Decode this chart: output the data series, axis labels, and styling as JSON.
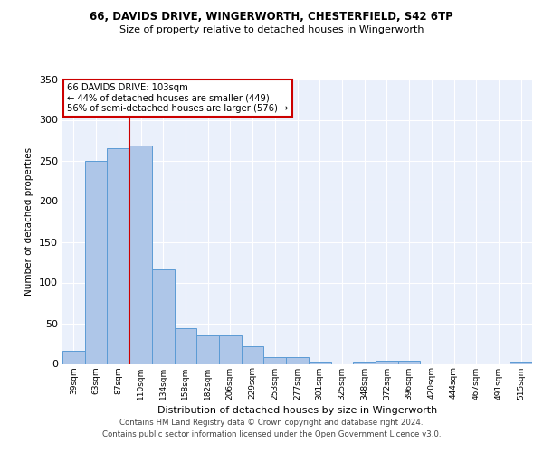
{
  "title1": "66, DAVIDS DRIVE, WINGERWORTH, CHESTERFIELD, S42 6TP",
  "title2": "Size of property relative to detached houses in Wingerworth",
  "xlabel": "Distribution of detached houses by size in Wingerworth",
  "ylabel": "Number of detached properties",
  "bin_labels": [
    "39sqm",
    "63sqm",
    "87sqm",
    "110sqm",
    "134sqm",
    "158sqm",
    "182sqm",
    "206sqm",
    "229sqm",
    "253sqm",
    "277sqm",
    "301sqm",
    "325sqm",
    "348sqm",
    "372sqm",
    "396sqm",
    "420sqm",
    "444sqm",
    "467sqm",
    "491sqm",
    "515sqm"
  ],
  "bar_values": [
    16,
    249,
    265,
    268,
    116,
    44,
    35,
    35,
    22,
    8,
    8,
    3,
    0,
    3,
    4,
    4,
    0,
    0,
    0,
    0,
    3
  ],
  "bar_color": "#aec6e8",
  "bar_edgecolor": "#5b9bd5",
  "vline_pos": 2.5,
  "vline_color": "#cc0000",
  "annotation_text": "66 DAVIDS DRIVE: 103sqm\n← 44% of detached houses are smaller (449)\n56% of semi-detached houses are larger (576) →",
  "annotation_box_color": "#ffffff",
  "annotation_box_edgecolor": "#cc0000",
  "ylim": [
    0,
    350
  ],
  "yticks": [
    0,
    50,
    100,
    150,
    200,
    250,
    300,
    350
  ],
  "background_color": "#eaf0fb",
  "grid_color": "#ffffff",
  "footer1": "Contains HM Land Registry data © Crown copyright and database right 2024.",
  "footer2": "Contains public sector information licensed under the Open Government Licence v3.0."
}
